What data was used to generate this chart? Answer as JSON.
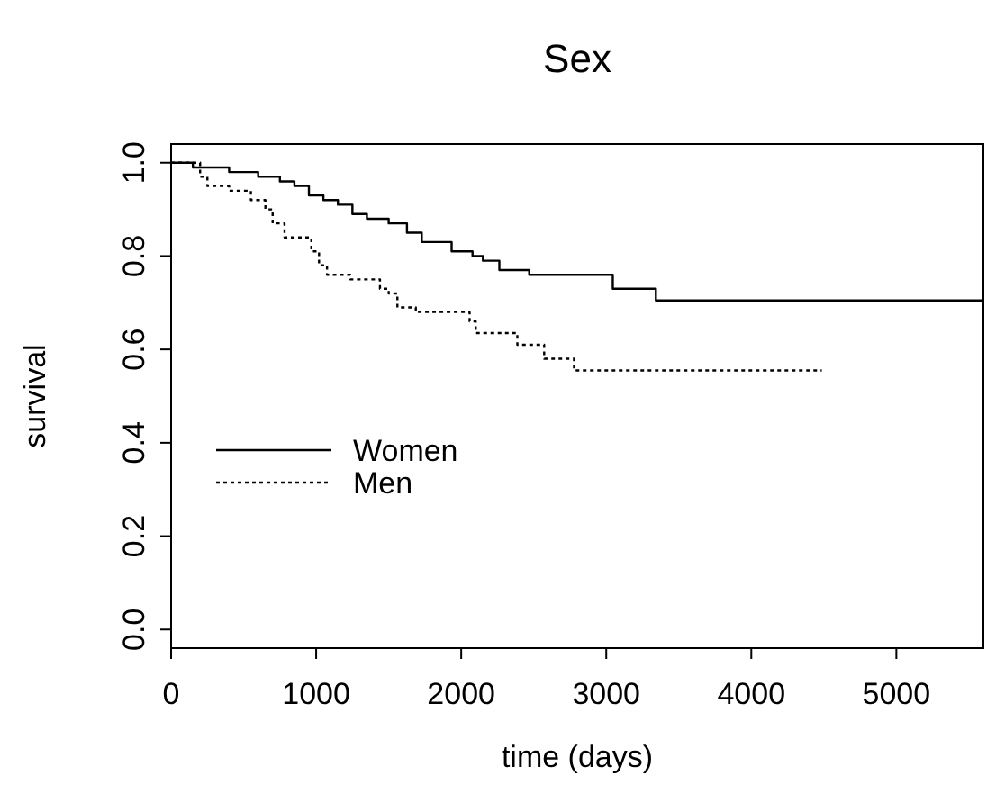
{
  "chart_data": {
    "type": "step",
    "title": "Sex",
    "xlabel": "time (days)",
    "ylabel": "survival",
    "xlim": [
      0,
      5600
    ],
    "ylim": [
      -0.04,
      1.04
    ],
    "xticks": [
      0,
      1000,
      2000,
      3000,
      4000,
      5000
    ],
    "yticks": [
      {
        "value": 0,
        "label": "0.0"
      },
      0.2,
      0.4,
      0.6,
      0.8,
      {
        "value": 1,
        "label": "1.0"
      }
    ],
    "grid": false,
    "legend": "left",
    "marker": "none",
    "series": [
      {
        "name": "Women",
        "color": "#000000",
        "line_style": "solid",
        "x": [
          0,
          150,
          400,
          600,
          750,
          850,
          950,
          1050,
          1150,
          1250,
          1350,
          1500,
          1626,
          1728,
          1934,
          2078,
          2150,
          2263,
          2469,
          3045,
          3342,
          5600
        ],
        "values": [
          1,
          0.99,
          0.98,
          0.97,
          0.96,
          0.95,
          0.93,
          0.92,
          0.91,
          0.89,
          0.88,
          0.87,
          0.85,
          0.83,
          0.81,
          0.8,
          0.79,
          0.77,
          0.76,
          0.73,
          0.705,
          0.705
        ]
      },
      {
        "name": "Men",
        "color": "#000000",
        "line_style": "dotted",
        "x": [
          0,
          200,
          250,
          400,
          550,
          650,
          700,
          782,
          967,
          1020,
          1075,
          1235,
          1440,
          1500,
          1560,
          1687,
          2058,
          2100,
          2387,
          2572,
          2778,
          4486
        ],
        "values": [
          1,
          0.97,
          0.95,
          0.94,
          0.92,
          0.9,
          0.87,
          0.84,
          0.81,
          0.78,
          0.76,
          0.75,
          0.73,
          0.72,
          0.69,
          0.68,
          0.66,
          0.635,
          0.61,
          0.58,
          0.555,
          0.555
        ]
      }
    ]
  }
}
